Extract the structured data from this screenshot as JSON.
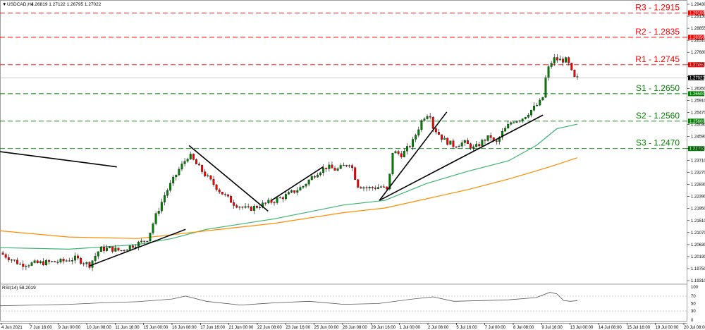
{
  "chart_data": {
    "type": "candlestick",
    "symbol": "USDCAD,H4",
    "ohlc_header": "1.26819 1.27122 1.26795 1.27022",
    "last_price": "1.27022",
    "price_axis": {
      "ylim": [
        1.1905,
        1.2955
      ],
      "ticks": [
        "1.29430",
        "1.29130",
        "1.28855",
        "1.28310",
        "1.27680",
        "1.27330",
        "1.26790",
        "1.26350",
        "1.25910",
        "1.25470",
        "1.25030",
        "1.24590",
        "1.24150",
        "1.23710",
        "1.23270",
        "1.22830",
        "1.22390",
        "1.21950",
        "1.21510",
        "1.21070",
        "1.20630",
        "1.20190",
        "1.19750",
        "1.19310"
      ]
    },
    "time_axis": {
      "ticks": [
        "4 Jun 2021",
        "7 Jun 16:00",
        "9 Jun 00:00",
        "10 Jun 08:00",
        "11 Jun 16:00",
        "15 Jun 00:00",
        "16 Jun 08:00",
        "17 Jun 16:00",
        "21 Jun 00:00",
        "22 Jun 08:00",
        "23 Jun 16:00",
        "25 Jun 00:00",
        "28 Jun 08:00",
        "29 Jun 16:00",
        "1 Jul 00:00",
        "2 Jul 08:00",
        "5 Jul 16:00",
        "7 Jul 00:00",
        "8 Jul 08:00",
        "9 Jul 16:00",
        "13 Jul 00:00",
        "14 Jul 08:00",
        "15 Jul 16:00",
        "19 Jul 00:00",
        "20 Jul 08:00"
      ]
    },
    "levels": [
      {
        "label": "R3 - 1.2915",
        "value": 1.2915,
        "tag": "1.29150",
        "color": "#ff0000",
        "type": "resistance"
      },
      {
        "label": "R2 - 1.2835",
        "value": 1.2835,
        "tag": "1.28350",
        "color": "#ff0000",
        "type": "resistance"
      },
      {
        "label": "R1 - 1.2745",
        "value": 1.2745,
        "tag": "1.27450",
        "color": "#ff0000",
        "type": "resistance"
      },
      {
        "label": "S1 - 1.2650",
        "value": 1.265,
        "tag": "1.26500",
        "color": "#008000",
        "type": "support"
      },
      {
        "label": "S2 - 1.2560",
        "value": 1.256,
        "tag": "1.25600",
        "color": "#008000",
        "type": "support"
      },
      {
        "label": "S3 - 1.2470",
        "value": 1.247,
        "tag": "1.24700",
        "color": "#008000",
        "type": "support"
      }
    ],
    "close_path": [
      [
        0,
        1.2128
      ],
      [
        0.03,
        1.209
      ],
      [
        0.06,
        1.2095
      ],
      [
        0.09,
        1.21
      ],
      [
        0.11,
        1.211
      ],
      [
        0.13,
        1.2088
      ],
      [
        0.145,
        1.214
      ],
      [
        0.16,
        1.2142
      ],
      [
        0.175,
        1.2135
      ],
      [
        0.19,
        1.215
      ],
      [
        0.205,
        1.2162
      ],
      [
        0.215,
        1.2175
      ],
      [
        0.225,
        1.224
      ],
      [
        0.24,
        1.232
      ],
      [
        0.26,
        1.24
      ],
      [
        0.275,
        1.245
      ],
      [
        0.285,
        1.242
      ],
      [
        0.3,
        1.238
      ],
      [
        0.32,
        1.233
      ],
      [
        0.34,
        1.229
      ],
      [
        0.36,
        1.227
      ],
      [
        0.38,
        1.2285
      ],
      [
        0.4,
        1.23
      ],
      [
        0.42,
        1.232
      ],
      [
        0.44,
        1.2345
      ],
      [
        0.46,
        1.239
      ],
      [
        0.475,
        1.241
      ],
      [
        0.49,
        1.24
      ],
      [
        0.51,
        1.2425
      ],
      [
        0.52,
        1.235
      ],
      [
        0.535,
        1.234
      ],
      [
        0.555,
        1.2345
      ],
      [
        0.565,
        1.233
      ],
      [
        0.57,
        1.246
      ],
      [
        0.585,
        1.245
      ],
      [
        0.6,
        1.249
      ],
      [
        0.615,
        1.257
      ],
      [
        0.625,
        1.259
      ],
      [
        0.63,
        1.254
      ],
      [
        0.645,
        1.25
      ],
      [
        0.66,
        1.248
      ],
      [
        0.675,
        1.249
      ],
      [
        0.69,
        1.247
      ],
      [
        0.705,
        1.25
      ],
      [
        0.715,
        1.251
      ],
      [
        0.72,
        1.248
      ],
      [
        0.73,
        1.252
      ],
      [
        0.745,
        1.256
      ],
      [
        0.76,
        1.257
      ],
      [
        0.775,
        1.26
      ],
      [
        0.785,
        1.262
      ],
      [
        0.79,
        1.264
      ],
      [
        0.795,
        1.272
      ],
      [
        0.805,
        1.2765
      ],
      [
        0.815,
        1.276
      ],
      [
        0.825,
        1.276
      ],
      [
        0.835,
        1.27
      ],
      [
        0.84,
        1.27
      ]
    ],
    "moving_averages": [
      {
        "name": "MA (green)",
        "color": "#3cb371",
        "values": [
          [
            0,
            1.2145
          ],
          [
            0.1,
            1.214
          ],
          [
            0.2,
            1.2155
          ],
          [
            0.25,
            1.2175
          ],
          [
            0.3,
            1.2205
          ],
          [
            0.4,
            1.224
          ],
          [
            0.5,
            1.2285
          ],
          [
            0.56,
            1.23
          ],
          [
            0.62,
            1.2355
          ],
          [
            0.68,
            1.2395
          ],
          [
            0.74,
            1.243
          ],
          [
            0.78,
            1.248
          ],
          [
            0.81,
            1.2535
          ],
          [
            0.84,
            1.255
          ]
        ]
      },
      {
        "name": "MA (orange)",
        "color": "#ff8c00",
        "values": [
          [
            0,
            1.22
          ],
          [
            0.1,
            1.218
          ],
          [
            0.2,
            1.2175
          ],
          [
            0.3,
            1.22
          ],
          [
            0.4,
            1.2225
          ],
          [
            0.5,
            1.226
          ],
          [
            0.56,
            1.2275
          ],
          [
            0.62,
            1.2305
          ],
          [
            0.68,
            1.2335
          ],
          [
            0.74,
            1.237
          ],
          [
            0.8,
            1.241
          ],
          [
            0.84,
            1.244
          ]
        ]
      }
    ],
    "trendlines": [
      {
        "from": [
          0,
          1.246
        ],
        "to": [
          0.17,
          1.241
        ]
      },
      {
        "from": [
          0.13,
          1.2085
        ],
        "to": [
          0.27,
          1.2205
        ]
      },
      {
        "from": [
          0.275,
          1.248
        ],
        "to": [
          0.39,
          1.2265
        ]
      },
      {
        "from": [
          0.395,
          1.23
        ],
        "to": [
          0.47,
          1.241
        ]
      },
      {
        "from": [
          0.552,
          1.23
        ],
        "to": [
          0.65,
          1.259
        ]
      },
      {
        "from": [
          0.552,
          1.23
        ],
        "to": [
          0.79,
          1.258
        ]
      }
    ],
    "rsi": {
      "label": "RSI(14) 58.2019",
      "ylim": [
        0,
        100
      ],
      "ticks": [
        "100",
        "70",
        "50",
        "30",
        "0"
      ],
      "values": [
        [
          0,
          44
        ],
        [
          0.05,
          46
        ],
        [
          0.1,
          48
        ],
        [
          0.15,
          52
        ],
        [
          0.2,
          55
        ],
        [
          0.25,
          62
        ],
        [
          0.27,
          70
        ],
        [
          0.3,
          56
        ],
        [
          0.35,
          46
        ],
        [
          0.4,
          52
        ],
        [
          0.45,
          56
        ],
        [
          0.5,
          48
        ],
        [
          0.55,
          50
        ],
        [
          0.6,
          62
        ],
        [
          0.63,
          68
        ],
        [
          0.66,
          56
        ],
        [
          0.7,
          58
        ],
        [
          0.74,
          60
        ],
        [
          0.78,
          66
        ],
        [
          0.8,
          80
        ],
        [
          0.81,
          76
        ],
        [
          0.82,
          58
        ],
        [
          0.83,
          56
        ],
        [
          0.84,
          58
        ]
      ]
    }
  }
}
